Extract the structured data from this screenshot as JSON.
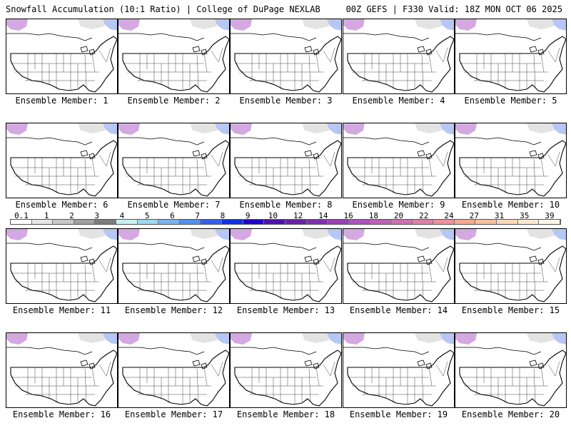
{
  "header": {
    "title_left": "Snowfall Accumulation (10:1 Ratio) | College of DuPage NEXLAB",
    "title_right": "00Z GEFS | F330 Valid: 18Z MON OCT 06 2025"
  },
  "legend": {
    "labels": [
      "0.1",
      "1",
      "2",
      "3",
      "4",
      "5",
      "6",
      "7",
      "8",
      "9",
      "10",
      "12",
      "14",
      "16",
      "18",
      "20",
      "22",
      "24",
      "27",
      "31",
      "35",
      "39"
    ],
    "colors": [
      "#ffffff",
      "#e6e6e6",
      "#c8c8c8",
      "#a0a0a0",
      "#7c7c7c",
      "#c8f0f0",
      "#a0d8f0",
      "#78b4f0",
      "#5090f0",
      "#3060f0",
      "#1030e8",
      "#2000d0",
      "#5010b0",
      "#6a20a8",
      "#8030b0",
      "#9a40b8",
      "#b050c0",
      "#c060b8",
      "#d070b0",
      "#e080a8",
      "#f090a0",
      "#f8a890",
      "#f8c0a0",
      "#f8d8b8",
      "#fce8d0",
      "#fff4e8"
    ]
  },
  "panels": [
    {
      "label": "Ensemble Member: 1"
    },
    {
      "label": "Ensemble Member: 2"
    },
    {
      "label": "Ensemble Member: 3"
    },
    {
      "label": "Ensemble Member: 4"
    },
    {
      "label": "Ensemble Member: 5"
    },
    {
      "label": "Ensemble Member: 6"
    },
    {
      "label": "Ensemble Member: 7"
    },
    {
      "label": "Ensemble Member: 8"
    },
    {
      "label": "Ensemble Member: 9"
    },
    {
      "label": "Ensemble Member: 10"
    },
    {
      "label": "Ensemble Member: 11"
    },
    {
      "label": "Ensemble Member: 12"
    },
    {
      "label": "Ensemble Member: 13"
    },
    {
      "label": "Ensemble Member: 14"
    },
    {
      "label": "Ensemble Member: 15"
    },
    {
      "label": "Ensemble Member: 16"
    },
    {
      "label": "Ensemble Member: 17"
    },
    {
      "label": "Ensemble Member: 18"
    },
    {
      "label": "Ensemble Member: 19"
    },
    {
      "label": "Ensemble Member: 20"
    }
  ]
}
